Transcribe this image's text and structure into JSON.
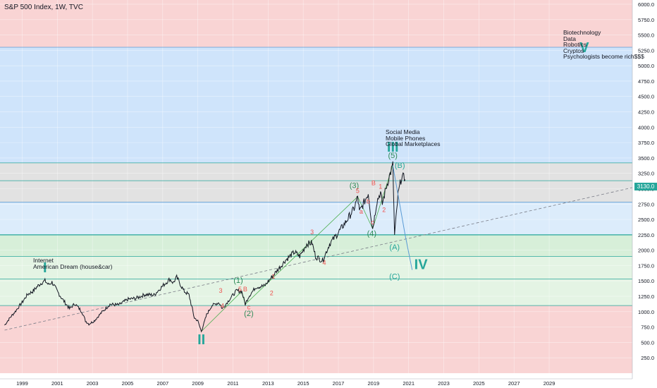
{
  "title": "S&P 500 Index, 1W, TVC",
  "current_price_label": "3130.0",
  "colors": {
    "red_zone": "#f9d4d4",
    "blue_zone": "#cfe4fb",
    "gray_zone": "#e2e2e2",
    "light_blue_zone": "#dcecfb",
    "green_zone": "#d7efd9",
    "green_zone2": "#e4f4e4",
    "line_teal": "#26a69a",
    "line_blue": "#5b9bd5",
    "wave_green": "#2e8b57",
    "wave_teal": "#26a69a",
    "price_line": "#131722"
  },
  "annotations": {
    "internet": "Internet\nAmerican Dream (house&car)",
    "social": "Social Media\nMobile Phones\nGlobal Marketplaces",
    "future": "Biotechnology\nData\nRobotics\nCryptos\nPsychologists become rich$$$"
  },
  "chart_data": {
    "type": "line",
    "title": "S&P 500 Index, 1W, TVC",
    "x_ticks": [
      "1999",
      "2001",
      "2003",
      "2005",
      "2007",
      "2009",
      "2011",
      "2013",
      "2015",
      "2017",
      "2019",
      "2021",
      "2023",
      "2025",
      "2027",
      "2029"
    ],
    "y_ticks": [
      "250.0",
      "500.0",
      "750.0",
      "1000.0",
      "1250.0",
      "1500.0",
      "1750.0",
      "2000.0",
      "2250.0",
      "2500.0",
      "2750.0",
      "3000.0",
      "3250.0",
      "3500.0",
      "3750.0",
      "4000.0",
      "4250.0",
      "4500.0",
      "4750.0",
      "5000.0",
      "5250.0",
      "5500.0",
      "5750.0",
      "6000.0"
    ],
    "ylim": [
      0,
      6150
    ],
    "xlim": [
      1998,
      2035
    ],
    "series": [
      {
        "points": [
          [
            1998.0,
            780
          ],
          [
            1998.3,
            900
          ],
          [
            1998.6,
            1000
          ],
          [
            1998.8,
            1080
          ],
          [
            1999.0,
            1150
          ],
          [
            1999.3,
            1280
          ],
          [
            1999.6,
            1330
          ],
          [
            1999.9,
            1420
          ],
          [
            2000.1,
            1470
          ],
          [
            2000.3,
            1500
          ],
          [
            2000.5,
            1440
          ],
          [
            2000.7,
            1480
          ],
          [
            2001.0,
            1330
          ],
          [
            2001.3,
            1200
          ],
          [
            2001.7,
            1050
          ],
          [
            2002.0,
            1130
          ],
          [
            2002.4,
            1000
          ],
          [
            2002.6,
            850
          ],
          [
            2002.8,
            800
          ],
          [
            2003.1,
            850
          ],
          [
            2003.5,
            980
          ],
          [
            2004.0,
            1120
          ],
          [
            2004.5,
            1110
          ],
          [
            2005.0,
            1200
          ],
          [
            2005.5,
            1220
          ],
          [
            2006.0,
            1280
          ],
          [
            2006.5,
            1270
          ],
          [
            2007.0,
            1420
          ],
          [
            2007.4,
            1530
          ],
          [
            2007.6,
            1470
          ],
          [
            2007.8,
            1560
          ],
          [
            2008.2,
            1340
          ],
          [
            2008.5,
            1270
          ],
          [
            2008.8,
            900
          ],
          [
            2009.0,
            850
          ],
          [
            2009.2,
            680
          ],
          [
            2009.5,
            950
          ],
          [
            2009.8,
            1100
          ],
          [
            2010.2,
            1150
          ],
          [
            2010.4,
            1050
          ],
          [
            2010.8,
            1200
          ],
          [
            2011.2,
            1340
          ],
          [
            2011.5,
            1330
          ],
          [
            2011.7,
            1120
          ],
          [
            2011.9,
            1250
          ],
          [
            2012.3,
            1400
          ],
          [
            2012.8,
            1420
          ],
          [
            2013.2,
            1560
          ],
          [
            2013.6,
            1700
          ],
          [
            2014.0,
            1840
          ],
          [
            2014.5,
            1970
          ],
          [
            2014.8,
            1900
          ],
          [
            2015.2,
            2100
          ],
          [
            2015.5,
            2120
          ],
          [
            2015.7,
            1900
          ],
          [
            2016.1,
            1830
          ],
          [
            2016.5,
            2100
          ],
          [
            2016.9,
            2250
          ],
          [
            2017.4,
            2450
          ],
          [
            2017.9,
            2680
          ],
          [
            2018.1,
            2870
          ],
          [
            2018.2,
            2620
          ],
          [
            2018.5,
            2800
          ],
          [
            2018.7,
            2930
          ],
          [
            2018.95,
            2350
          ],
          [
            2019.2,
            2800
          ],
          [
            2019.4,
            2940
          ],
          [
            2019.5,
            2750
          ],
          [
            2019.7,
            3000
          ],
          [
            2019.9,
            3200
          ],
          [
            2020.1,
            3380
          ],
          [
            2020.2,
            2240
          ],
          [
            2020.4,
            2900
          ],
          [
            2020.6,
            3200
          ],
          [
            2020.8,
            3150
          ]
        ]
      }
    ],
    "zones": [
      {
        "from": 5300,
        "to": 6150,
        "color": "red_zone"
      },
      {
        "from": 3420,
        "to": 5300,
        "color": "blue_zone"
      },
      {
        "from": 2780,
        "to": 3420,
        "color": "gray_zone"
      },
      {
        "from": 2250,
        "to": 2780,
        "color": "light_blue_zone"
      },
      {
        "from": 1900,
        "to": 2250,
        "color": "green_zone"
      },
      {
        "from": 1100,
        "to": 1900,
        "color": "green_zone2"
      },
      {
        "from": 0,
        "to": 1100,
        "color": "red_zone"
      }
    ],
    "hlines": [
      5300,
      3420,
      3130,
      2780,
      2250,
      1900,
      1530,
      1100
    ],
    "trendline": [
      [
        1998.0,
        700
      ],
      [
        2035.0,
        3100
      ]
    ],
    "projection": [
      [
        2020.1,
        3380
      ],
      [
        2020.8,
        2250
      ],
      [
        2021.2,
        1680
      ]
    ],
    "green_lines": [
      [
        2009.2,
        680
      ],
      [
        2011.5,
        1330
      ],
      [
        2011.7,
        1120
      ],
      [
        2018.1,
        2870
      ],
      [
        2018.95,
        2350
      ],
      [
        2020.1,
        3380
      ]
    ],
    "wave_labels": [
      {
        "text": "I",
        "x": 2000.3,
        "y": 1640,
        "style": "big"
      },
      {
        "text": "II",
        "x": 2009.2,
        "y": 470,
        "style": "big"
      },
      {
        "text": "III",
        "x": 2020.1,
        "y": 3600,
        "style": "big"
      },
      {
        "text": "IV",
        "x": 2021.7,
        "y": 1690,
        "style": "big"
      },
      {
        "text": "V",
        "x": 2031.0,
        "y": 5220,
        "style": "big"
      },
      {
        "text": "(1)",
        "x": 2011.3,
        "y": 1470,
        "style": "mid"
      },
      {
        "text": "(2)",
        "x": 2011.9,
        "y": 930,
        "style": "mid"
      },
      {
        "text": "(3)",
        "x": 2017.9,
        "y": 3010,
        "style": "mid"
      },
      {
        "text": "(4)",
        "x": 2018.9,
        "y": 2230,
        "style": "mid"
      },
      {
        "text": "(5)",
        "x": 2020.1,
        "y": 3500,
        "style": "mid"
      },
      {
        "text": "(A)",
        "x": 2020.2,
        "y": 2010,
        "style": "midt"
      },
      {
        "text": "(B)",
        "x": 2020.5,
        "y": 3340,
        "style": "midt"
      },
      {
        "text": "(C)",
        "x": 2020.2,
        "y": 1530,
        "style": "midt"
      },
      {
        "text": "3",
        "x": 2010.3,
        "y": 1310,
        "style": "small"
      },
      {
        "text": "4",
        "x": 2010.4,
        "y": 1060,
        "style": "small"
      },
      {
        "text": "5",
        "x": 2011.4,
        "y": 1330,
        "style": "small"
      },
      {
        "text": "B",
        "x": 2011.7,
        "y": 1330,
        "style": "small"
      },
      {
        "text": "c",
        "x": 2011.9,
        "y": 1040,
        "style": "small"
      },
      {
        "text": "1",
        "x": 2013.3,
        "y": 1540,
        "style": "small"
      },
      {
        "text": "2",
        "x": 2013.2,
        "y": 1270,
        "style": "small"
      },
      {
        "text": "3",
        "x": 2015.5,
        "y": 2260,
        "style": "small"
      },
      {
        "text": "4",
        "x": 2016.2,
        "y": 1760,
        "style": "small"
      },
      {
        "text": "5",
        "x": 2018.1,
        "y": 2930,
        "style": "small"
      },
      {
        "text": "B",
        "x": 2019.0,
        "y": 3060,
        "style": "small"
      },
      {
        "text": "c",
        "x": 2018.95,
        "y": 2420,
        "style": "small"
      },
      {
        "text": "1",
        "x": 2019.4,
        "y": 3000,
        "style": "small"
      },
      {
        "text": "2",
        "x": 2019.6,
        "y": 2620,
        "style": "small"
      },
      {
        "text": "a",
        "x": 2018.3,
        "y": 2590,
        "style": "small"
      },
      {
        "text": "b",
        "x": 2018.7,
        "y": 2760,
        "style": "small"
      }
    ]
  }
}
